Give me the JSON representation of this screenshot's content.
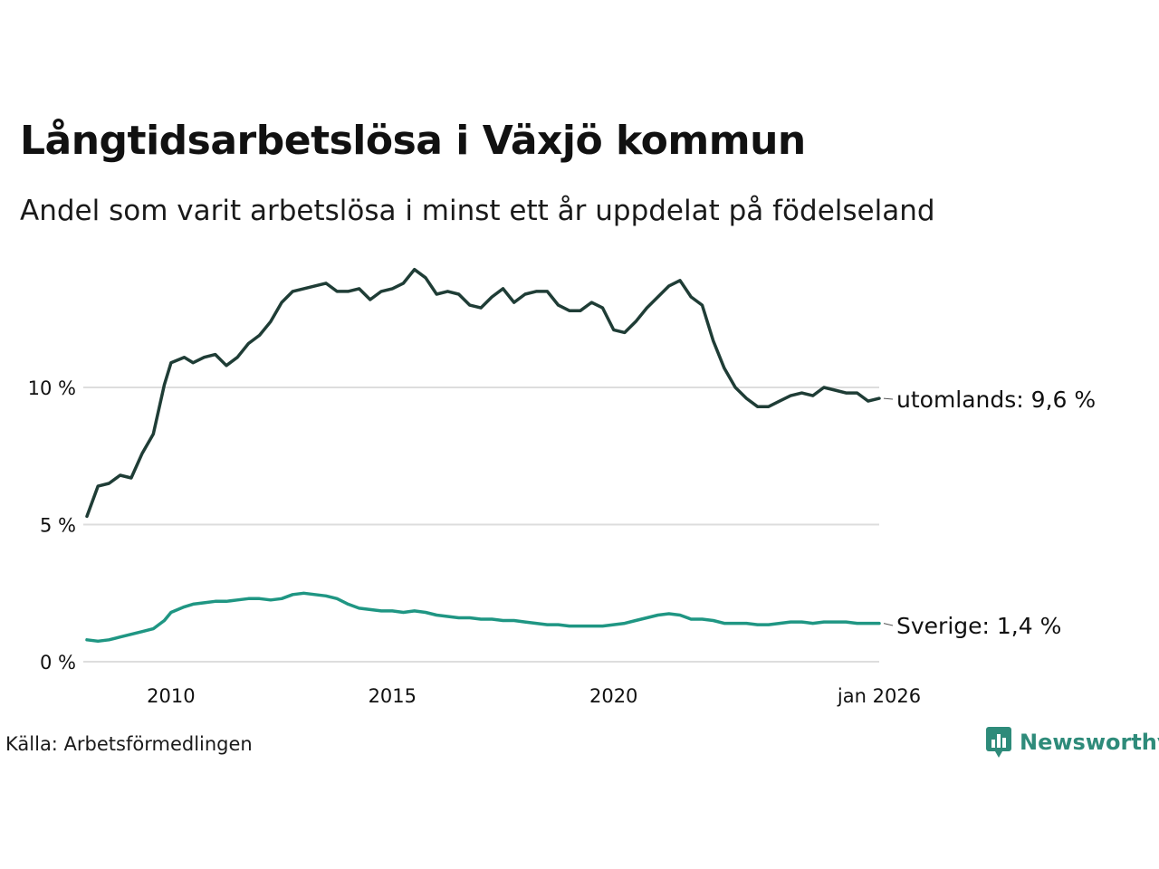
{
  "title": "Långtidsarbetslösa i Växjö kommun",
  "subtitle": "Andel som varit arbetslösa i minst ett år uppdelat på födelseland",
  "source": "Källa: Arbetsförmedlingen",
  "logo_text": "Newsworthy",
  "colors": {
    "foreign": "#1f3d36",
    "sweden": "#1f9683",
    "grid": "#dddddd",
    "logo": "#2e8b7a"
  },
  "chart_data": {
    "type": "line",
    "title": "Långtidsarbetslösa i Växjö kommun",
    "xlabel": "",
    "ylabel": "",
    "xlim": [
      2008.1,
      2026.0
    ],
    "ylim": [
      0,
      15
    ],
    "y_ticks": [
      {
        "value": 0,
        "label": "0 %"
      },
      {
        "value": 5,
        "label": "5 %"
      },
      {
        "value": 10,
        "label": "10 %"
      }
    ],
    "x_ticks": [
      {
        "value": 2010,
        "label": "2010"
      },
      {
        "value": 2015,
        "label": "2015"
      },
      {
        "value": 2020,
        "label": "2020"
      },
      {
        "value": 2026,
        "label": "jan 2026"
      }
    ],
    "series": [
      {
        "name": "utomlands",
        "end_label": "utomlands: 9,6 %",
        "color": "#1f3d36",
        "x": [
          2008.1,
          2008.35,
          2008.6,
          2008.85,
          2009.1,
          2009.35,
          2009.6,
          2009.85,
          2010.0,
          2010.3,
          2010.5,
          2010.75,
          2011.0,
          2011.25,
          2011.5,
          2011.75,
          2012.0,
          2012.25,
          2012.5,
          2012.75,
          2013.0,
          2013.25,
          2013.5,
          2013.75,
          2014.0,
          2014.25,
          2014.5,
          2014.75,
          2015.0,
          2015.25,
          2015.5,
          2015.75,
          2016.0,
          2016.25,
          2016.5,
          2016.75,
          2017.0,
          2017.25,
          2017.5,
          2017.75,
          2018.0,
          2018.25,
          2018.5,
          2018.75,
          2019.0,
          2019.25,
          2019.5,
          2019.75,
          2020.0,
          2020.25,
          2020.5,
          2020.75,
          2021.0,
          2021.25,
          2021.5,
          2021.75,
          2022.0,
          2022.25,
          2022.5,
          2022.75,
          2023.0,
          2023.25,
          2023.5,
          2023.75,
          2024.0,
          2024.25,
          2024.5,
          2024.75,
          2025.0,
          2025.25,
          2025.5,
          2025.75,
          2026.0
        ],
        "values": [
          5.3,
          6.4,
          6.5,
          6.8,
          6.7,
          7.6,
          8.3,
          10.1,
          10.9,
          11.1,
          10.9,
          11.1,
          11.2,
          10.8,
          11.1,
          11.6,
          11.9,
          12.4,
          13.1,
          13.5,
          13.6,
          13.7,
          13.8,
          13.5,
          13.5,
          13.6,
          13.2,
          13.5,
          13.6,
          13.8,
          14.3,
          14.0,
          13.4,
          13.5,
          13.4,
          13.0,
          12.9,
          13.3,
          13.6,
          13.1,
          13.4,
          13.5,
          13.5,
          13.0,
          12.8,
          12.8,
          13.1,
          12.9,
          12.1,
          12.0,
          12.4,
          12.9,
          13.3,
          13.7,
          13.9,
          13.3,
          13.0,
          11.7,
          10.7,
          10.0,
          9.6,
          9.3,
          9.3,
          9.5,
          9.7,
          9.8,
          9.7,
          10.0,
          9.9,
          9.8,
          9.8,
          9.5,
          9.6
        ]
      },
      {
        "name": "Sverige",
        "end_label": "Sverige: 1,4 %",
        "color": "#1f9683",
        "x": [
          2008.1,
          2008.35,
          2008.6,
          2008.85,
          2009.1,
          2009.35,
          2009.6,
          2009.85,
          2010.0,
          2010.3,
          2010.5,
          2010.75,
          2011.0,
          2011.25,
          2011.5,
          2011.75,
          2012.0,
          2012.25,
          2012.5,
          2012.75,
          2013.0,
          2013.25,
          2013.5,
          2013.75,
          2014.0,
          2014.25,
          2014.5,
          2014.75,
          2015.0,
          2015.25,
          2015.5,
          2015.75,
          2016.0,
          2016.25,
          2016.5,
          2016.75,
          2017.0,
          2017.25,
          2017.5,
          2017.75,
          2018.0,
          2018.25,
          2018.5,
          2018.75,
          2019.0,
          2019.25,
          2019.5,
          2019.75,
          2020.0,
          2020.25,
          2020.5,
          2020.75,
          2021.0,
          2021.25,
          2021.5,
          2021.75,
          2022.0,
          2022.25,
          2022.5,
          2022.75,
          2023.0,
          2023.25,
          2023.5,
          2023.75,
          2024.0,
          2024.25,
          2024.5,
          2024.75,
          2025.0,
          2025.25,
          2025.5,
          2025.75,
          2026.0
        ],
        "values": [
          0.8,
          0.75,
          0.8,
          0.9,
          1.0,
          1.1,
          1.2,
          1.5,
          1.8,
          2.0,
          2.1,
          2.15,
          2.2,
          2.2,
          2.25,
          2.3,
          2.3,
          2.25,
          2.3,
          2.45,
          2.5,
          2.45,
          2.4,
          2.3,
          2.1,
          1.95,
          1.9,
          1.85,
          1.85,
          1.8,
          1.85,
          1.8,
          1.7,
          1.65,
          1.6,
          1.6,
          1.55,
          1.55,
          1.5,
          1.5,
          1.45,
          1.4,
          1.35,
          1.35,
          1.3,
          1.3,
          1.3,
          1.3,
          1.35,
          1.4,
          1.5,
          1.6,
          1.7,
          1.75,
          1.7,
          1.55,
          1.55,
          1.5,
          1.4,
          1.4,
          1.4,
          1.35,
          1.35,
          1.4,
          1.45,
          1.45,
          1.4,
          1.45,
          1.45,
          1.45,
          1.4,
          1.4,
          1.4
        ]
      }
    ]
  }
}
